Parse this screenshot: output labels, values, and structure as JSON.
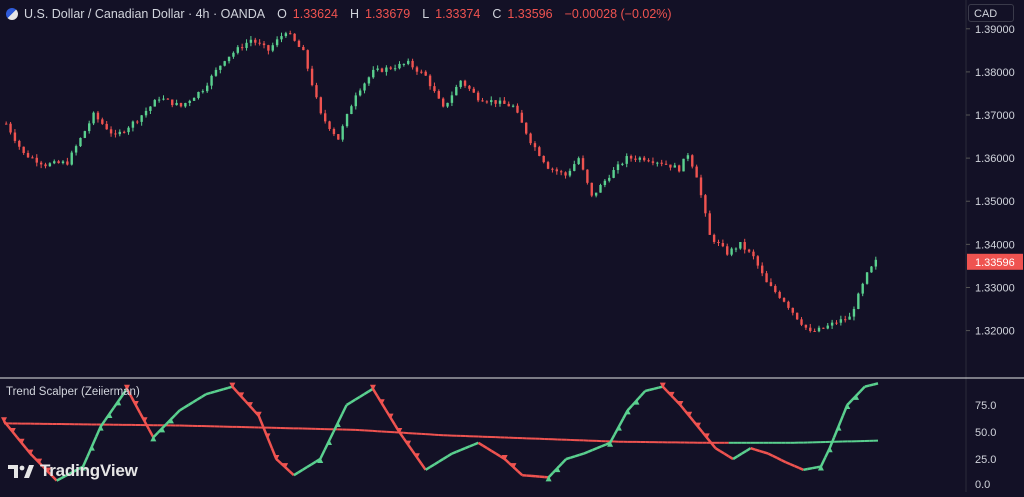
{
  "header": {
    "symbol": "U.S. Dollar / Canadian Dollar · 4h · OANDA",
    "open_label": "O",
    "open": "1.33624",
    "high_label": "H",
    "high": "1.33679",
    "low_label": "L",
    "low": "1.33374",
    "close_label": "C",
    "close": "1.33596",
    "change": "−0.00028 (−0.02%)"
  },
  "currency_button": "CAD",
  "indicator_title": "Trend Scalper (Zeiierman)",
  "brand": "TradingView",
  "icons": {
    "flag": "us-flag-icon",
    "logo": "tradingview-logo-icon"
  },
  "colors": {
    "bg": "#131126",
    "up": "#5ad08f",
    "down": "#ef5350",
    "label_bg": "#ef5350"
  },
  "chart_data": [
    {
      "type": "candlestick",
      "y_ticks": [
        "1.39000",
        "1.38000",
        "1.37000",
        "1.36000",
        "1.35000",
        "1.34000",
        "1.33000",
        "1.32000"
      ],
      "ylim": [
        1.3155,
        1.3925
      ],
      "last_price_label": "1.33596",
      "close_path": [
        [
          0,
          1.368
        ],
        [
          4,
          1.361
        ],
        [
          9,
          1.3585
        ],
        [
          14,
          1.359
        ],
        [
          20,
          1.37
        ],
        [
          25,
          1.365
        ],
        [
          30,
          1.369
        ],
        [
          35,
          1.374
        ],
        [
          40,
          1.372
        ],
        [
          45,
          1.376
        ],
        [
          50,
          1.383
        ],
        [
          56,
          1.3875
        ],
        [
          60,
          1.385
        ],
        [
          64,
          1.3895
        ],
        [
          68,
          1.3845
        ],
        [
          72,
          1.37
        ],
        [
          76,
          1.3645
        ],
        [
          80,
          1.375
        ],
        [
          84,
          1.38
        ],
        [
          88,
          1.381
        ],
        [
          92,
          1.382
        ],
        [
          96,
          1.379
        ],
        [
          100,
          1.3715
        ],
        [
          104,
          1.378
        ],
        [
          108,
          1.374
        ],
        [
          112,
          1.373
        ],
        [
          116,
          1.372
        ],
        [
          120,
          1.364
        ],
        [
          124,
          1.358
        ],
        [
          128,
          1.356
        ],
        [
          131,
          1.36
        ],
        [
          134,
          1.351
        ],
        [
          138,
          1.356
        ],
        [
          142,
          1.36
        ],
        [
          146,
          1.36
        ],
        [
          150,
          1.359
        ],
        [
          154,
          1.3575
        ],
        [
          156,
          1.361
        ],
        [
          158,
          1.356
        ],
        [
          161,
          1.342
        ],
        [
          165,
          1.338
        ],
        [
          168,
          1.34
        ],
        [
          171,
          1.337
        ],
        [
          174,
          1.331
        ],
        [
          178,
          1.327
        ],
        [
          181,
          1.323
        ],
        [
          184,
          1.3195
        ],
        [
          187,
          1.3205
        ],
        [
          190,
          1.322
        ],
        [
          193,
          1.323
        ],
        [
          195,
          1.328
        ],
        [
          197,
          1.333
        ],
        [
          199,
          1.336
        ]
      ],
      "n_candles": 200
    },
    {
      "type": "line",
      "title": "Trend Scalper (Zeiierman)",
      "y_ticks": [
        "75.0",
        "50.0",
        "25.0",
        "0.0"
      ],
      "ylim": [
        0,
        100
      ],
      "series": [
        {
          "values": [
            [
              0,
              60
            ],
            [
              6,
              30
            ],
            [
              12,
              5
            ],
            [
              18,
              18
            ],
            [
              22,
              55
            ],
            [
              28,
              90
            ],
            [
              34,
              45
            ],
            [
              40,
              70
            ],
            [
              46,
              85
            ],
            [
              52,
              92
            ],
            [
              58,
              65
            ],
            [
              62,
              25
            ],
            [
              66,
              10
            ],
            [
              72,
              25
            ],
            [
              78,
              75
            ],
            [
              84,
              90
            ],
            [
              90,
              50
            ],
            [
              96,
              15
            ],
            [
              102,
              30
            ],
            [
              108,
              40
            ],
            [
              114,
              25
            ],
            [
              118,
              10
            ],
            [
              124,
              8
            ],
            [
              128,
              25
            ],
            [
              132,
              30
            ],
            [
              138,
              40
            ],
            [
              142,
              70
            ],
            [
              146,
              88
            ],
            [
              150,
              92
            ],
            [
              154,
              75
            ],
            [
              158,
              55
            ],
            [
              162,
              35
            ],
            [
              166,
              25
            ],
            [
              170,
              35
            ],
            [
              174,
              30
            ],
            [
              178,
              22
            ],
            [
              182,
              15
            ],
            [
              186,
              18
            ],
            [
              188,
              35
            ],
            [
              192,
              75
            ],
            [
              196,
              92
            ],
            [
              199,
              95
            ]
          ]
        },
        {
          "values": [
            [
              0,
              58
            ],
            [
              20,
              57
            ],
            [
              40,
              56
            ],
            [
              60,
              54
            ],
            [
              80,
              52
            ],
            [
              100,
              47
            ],
            [
              120,
              44
            ],
            [
              140,
              41
            ],
            [
              160,
              40
            ],
            [
              180,
              40
            ],
            [
              199,
              42
            ]
          ]
        }
      ]
    }
  ]
}
